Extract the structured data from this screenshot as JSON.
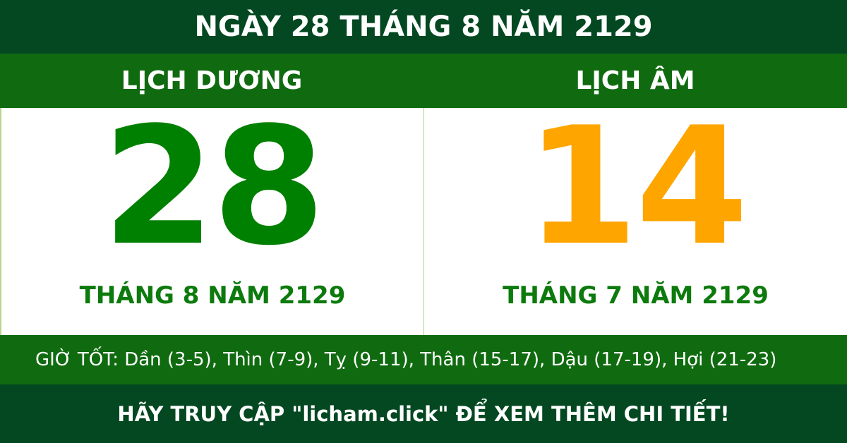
{
  "title": "NGÀY 28 THÁNG 8 NĂM 2129",
  "solar": {
    "label": "LỊCH DƯƠNG",
    "day": "28",
    "month_year": "THÁNG 8 NĂM 2129"
  },
  "lunar": {
    "label": "LỊCH ÂM",
    "day": "14",
    "month_year": "THÁNG 7 NĂM 2129"
  },
  "good_hours": "GIỜ TỐT: Dần (3-5), Thìn (7-9), Tỵ (9-11), Thân (15-17), Dậu (17-19), Hợi (21-23)",
  "footer": "HÃY TRUY CẬP \"licham.click\" ĐỂ XEM THÊM CHI TIẾT!",
  "colors": {
    "dark_green": "#034821",
    "green": "#106b10",
    "solar_day": "#008000",
    "lunar_day": "#ffa500"
  }
}
